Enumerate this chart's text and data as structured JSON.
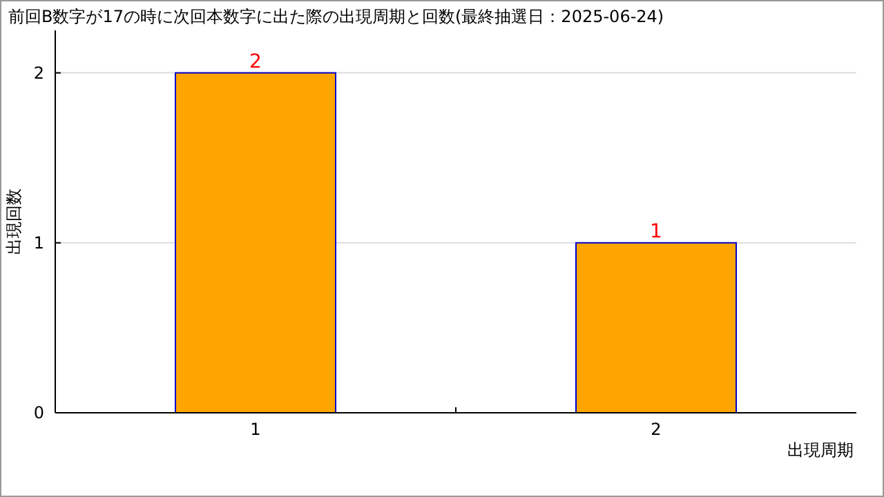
{
  "chart_data": {
    "type": "bar",
    "title": "前回B数字が17の時に次回本数字に出た際の出現周期と回数(最終抽選日：2025-06-24)",
    "xlabel": "出現周期",
    "ylabel": "出現回数",
    "categories": [
      "1",
      "2"
    ],
    "series": [
      {
        "color": "#ffa500",
        "values": [
          2,
          1
        ]
      }
    ],
    "ylim": [
      0,
      2.25
    ],
    "yticks": [
      0,
      1,
      2
    ],
    "grid": "y",
    "data_labels": true
  }
}
